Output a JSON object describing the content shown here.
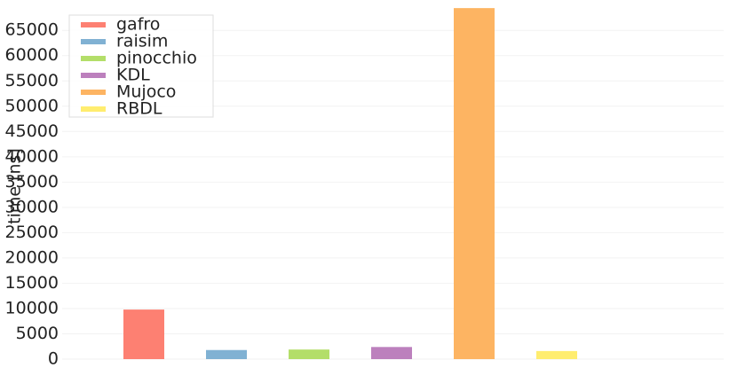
{
  "chart_data": {
    "type": "bar",
    "y_label": "time [ns]",
    "series": [
      {
        "name": "gafro",
        "color": "#fd8072",
        "values": [
          9800
        ]
      },
      {
        "name": "raisim",
        "color": "#80b1d3",
        "values": [
          1800
        ]
      },
      {
        "name": "pinocchio",
        "color": "#b3de69",
        "values": [
          1900
        ]
      },
      {
        "name": "KDL",
        "color": "#bc80bd",
        "values": [
          2400
        ]
      },
      {
        "name": "Mujoco",
        "color": "#fdb462",
        "values": [
          69400
        ]
      },
      {
        "name": "RBDL",
        "color": "#ffed6f",
        "values": [
          1600
        ]
      }
    ],
    "ylim": [
      0,
      71000
    ],
    "yticks": [
      0,
      5000,
      10000,
      15000,
      20000,
      25000,
      30000,
      35000,
      40000,
      45000,
      50000,
      55000,
      60000,
      65000
    ],
    "grid": true,
    "legend": "upper left"
  }
}
